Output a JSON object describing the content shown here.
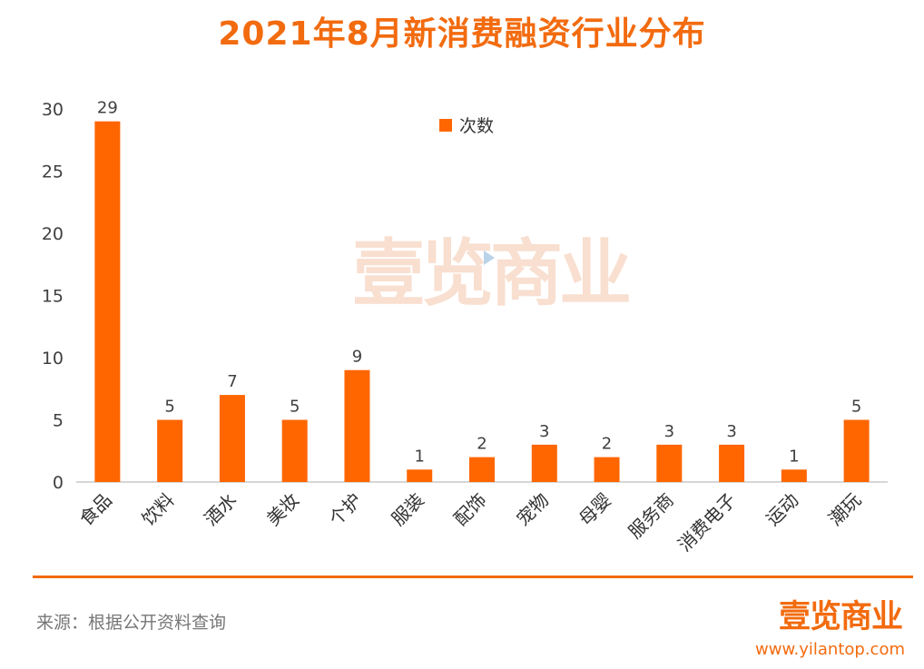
{
  "header": {
    "title": "2021年8月新消费融资行业分布"
  },
  "chart_data": {
    "type": "bar",
    "title": "2021年8月新消费融资行业分布",
    "categories": [
      "食品",
      "饮料",
      "酒水",
      "美妆",
      "个护",
      "服装",
      "配饰",
      "宠物",
      "母婴",
      "服务商",
      "消费电子",
      "运动",
      "潮玩"
    ],
    "series": [
      {
        "name": "次数",
        "values": [
          29,
          5,
          7,
          5,
          9,
          1,
          2,
          3,
          2,
          3,
          3,
          1,
          5
        ]
      }
    ],
    "ylim": [
      0,
      30
    ],
    "yticks": [
      0,
      5,
      10,
      15,
      20,
      25,
      30
    ],
    "xlabel": "",
    "ylabel": "",
    "grid": false,
    "legend_position": "top-center",
    "bar_color": "#FF6600"
  },
  "footer": {
    "source": "来源：根据公开资料查询",
    "brand_name": "壹览商业",
    "brand_url": "www.yilantop.com"
  },
  "watermark": {
    "text": "壹览商业"
  },
  "colors": {
    "accent": "#F26B0F",
    "bar": "#FF6600"
  }
}
